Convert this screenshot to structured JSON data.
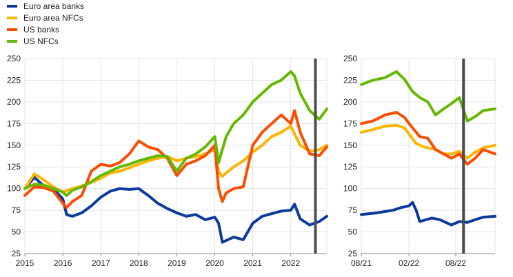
{
  "legend": [
    {
      "label": "Euro area banks",
      "color": "#0b3a9e"
    },
    {
      "label": "Euro area NFCs",
      "color": "#ffb400"
    },
    {
      "label": "US banks",
      "color": "#ff4b00"
    },
    {
      "label": "US NFCs",
      "color": "#65b800"
    }
  ],
  "chart_data": [
    {
      "type": "line",
      "title": "",
      "xlabel": "",
      "ylabel": "",
      "ylim": [
        25,
        250
      ],
      "yticks": [
        25,
        50,
        75,
        100,
        125,
        150,
        175,
        200,
        225,
        250
      ],
      "xlim": [
        2015.0,
        2022.95
      ],
      "xticks": [
        {
          "x": 2015,
          "label": "2015"
        },
        {
          "x": 2016,
          "label": "2016"
        },
        {
          "x": 2017,
          "label": "2017"
        },
        {
          "x": 2018,
          "label": "2018"
        },
        {
          "x": 2019,
          "label": "2019"
        },
        {
          "x": 2020,
          "label": "2020"
        },
        {
          "x": 2021,
          "label": "2021"
        },
        {
          "x": 2022,
          "label": "2022"
        }
      ],
      "grid": "horizontal",
      "vline": 2022.65,
      "series": [
        {
          "name": "Euro area banks",
          "color": "#0b3a9e",
          "x": [
            2015.0,
            2015.25,
            2015.5,
            2015.75,
            2016.0,
            2016.1,
            2016.25,
            2016.5,
            2016.75,
            2017.0,
            2017.25,
            2017.5,
            2017.75,
            2018.0,
            2018.25,
            2018.5,
            2018.75,
            2019.0,
            2019.25,
            2019.5,
            2019.75,
            2020.0,
            2020.1,
            2020.2,
            2020.3,
            2020.5,
            2020.75,
            2021.0,
            2021.25,
            2021.5,
            2021.75,
            2022.0,
            2022.1,
            2022.25,
            2022.5,
            2022.75,
            2022.95
          ],
          "y": [
            100,
            113,
            103,
            100,
            88,
            70,
            68,
            72,
            80,
            90,
            97,
            100,
            99,
            100,
            92,
            83,
            77,
            72,
            68,
            70,
            64,
            67,
            60,
            38,
            40,
            44,
            41,
            60,
            68,
            71,
            74,
            75,
            82,
            65,
            58,
            62,
            68
          ]
        },
        {
          "name": "Euro area NFCs",
          "color": "#ffb400",
          "x": [
            2015.0,
            2015.25,
            2015.5,
            2015.75,
            2016.0,
            2016.25,
            2016.5,
            2016.75,
            2017.0,
            2017.25,
            2017.5,
            2017.75,
            2018.0,
            2018.25,
            2018.5,
            2018.75,
            2019.0,
            2019.25,
            2019.5,
            2019.75,
            2020.0,
            2020.1,
            2020.2,
            2020.3,
            2020.5,
            2020.75,
            2021.0,
            2021.25,
            2021.5,
            2021.75,
            2022.0,
            2022.1,
            2022.25,
            2022.5,
            2022.75,
            2022.95
          ],
          "y": [
            100,
            117,
            110,
            102,
            96,
            100,
            103,
            107,
            112,
            118,
            120,
            124,
            128,
            132,
            135,
            137,
            132,
            135,
            137,
            140,
            145,
            120,
            114,
            118,
            125,
            132,
            142,
            150,
            160,
            165,
            172,
            163,
            150,
            143,
            145,
            150
          ]
        },
        {
          "name": "US banks",
          "color": "#ff4b00",
          "x": [
            2015.0,
            2015.25,
            2015.5,
            2015.75,
            2016.0,
            2016.1,
            2016.25,
            2016.5,
            2016.75,
            2017.0,
            2017.25,
            2017.5,
            2017.75,
            2018.0,
            2018.25,
            2018.5,
            2018.75,
            2019.0,
            2019.25,
            2019.5,
            2019.75,
            2020.0,
            2020.1,
            2020.2,
            2020.3,
            2020.5,
            2020.75,
            2021.0,
            2021.25,
            2021.5,
            2021.75,
            2022.0,
            2022.1,
            2022.25,
            2022.5,
            2022.75,
            2022.95
          ],
          "y": [
            92,
            102,
            101,
            97,
            83,
            78,
            85,
            92,
            120,
            128,
            126,
            130,
            140,
            155,
            148,
            145,
            135,
            115,
            128,
            132,
            138,
            150,
            100,
            85,
            95,
            100,
            102,
            150,
            165,
            175,
            185,
            175,
            190,
            165,
            140,
            138,
            148
          ]
        },
        {
          "name": "US NFCs",
          "color": "#65b800",
          "x": [
            2015.0,
            2015.25,
            2015.5,
            2015.75,
            2016.0,
            2016.1,
            2016.25,
            2016.5,
            2016.75,
            2017.0,
            2017.25,
            2017.5,
            2017.75,
            2018.0,
            2018.25,
            2018.5,
            2018.75,
            2019.0,
            2019.25,
            2019.5,
            2019.75,
            2020.0,
            2020.1,
            2020.2,
            2020.3,
            2020.5,
            2020.75,
            2021.0,
            2021.25,
            2021.5,
            2021.75,
            2022.0,
            2022.1,
            2022.25,
            2022.5,
            2022.75,
            2022.95
          ],
          "y": [
            100,
            105,
            104,
            100,
            96,
            92,
            98,
            102,
            108,
            115,
            120,
            125,
            128,
            132,
            135,
            138,
            137,
            120,
            135,
            140,
            148,
            160,
            130,
            145,
            160,
            175,
            185,
            200,
            210,
            220,
            225,
            235,
            230,
            210,
            190,
            180,
            192
          ]
        }
      ]
    },
    {
      "type": "line",
      "title": "",
      "xlabel": "",
      "ylabel": "",
      "ylim": [
        25,
        250
      ],
      "yticks": [
        25,
        50,
        75,
        100,
        125,
        150,
        175,
        200,
        225,
        250
      ],
      "xlim": [
        "2021-08-01",
        "2022-12-31"
      ],
      "xticks": [
        {
          "x": "2021-08-01",
          "label": "08/21"
        },
        {
          "x": "2022-02-01",
          "label": "02/22"
        },
        {
          "x": "2022-08-01",
          "label": "08/22"
        }
      ],
      "grid": "horizontal",
      "vline": "2022-08-31",
      "series": [
        {
          "name": "Euro area banks",
          "color": "#0b3a9e",
          "x": [
            "2021-08-01",
            "2021-10-01",
            "2021-12-01",
            "2022-01-01",
            "2022-02-01",
            "2022-02-15",
            "2022-03-01",
            "2022-03-15",
            "2022-05-01",
            "2022-06-01",
            "2022-07-15",
            "2022-08-15",
            "2022-09-15",
            "2022-10-15",
            "2022-11-15",
            "2022-12-31"
          ],
          "y": [
            70,
            72,
            75,
            78,
            80,
            84,
            75,
            62,
            66,
            64,
            58,
            62,
            61,
            64,
            67,
            68
          ]
        },
        {
          "name": "Euro area NFCs",
          "color": "#ffb400",
          "x": [
            "2021-08-01",
            "2021-09-15",
            "2021-11-01",
            "2021-12-15",
            "2022-01-15",
            "2022-02-01",
            "2022-03-01",
            "2022-04-01",
            "2022-05-15",
            "2022-06-15",
            "2022-07-15",
            "2022-08-15",
            "2022-09-15",
            "2022-10-15",
            "2022-11-15",
            "2022-12-31"
          ],
          "y": [
            165,
            168,
            172,
            173,
            170,
            163,
            152,
            148,
            145,
            140,
            140,
            143,
            135,
            142,
            147,
            150
          ]
        },
        {
          "name": "US banks",
          "color": "#ff4b00",
          "x": [
            "2021-08-01",
            "2021-09-15",
            "2021-11-01",
            "2021-12-15",
            "2022-01-15",
            "2022-02-15",
            "2022-03-15",
            "2022-04-15",
            "2022-05-15",
            "2022-06-15",
            "2022-07-15",
            "2022-08-15",
            "2022-09-15",
            "2022-10-15",
            "2022-11-15",
            "2022-12-31"
          ],
          "y": [
            175,
            178,
            185,
            188,
            182,
            170,
            160,
            158,
            145,
            140,
            135,
            140,
            128,
            135,
            145,
            140
          ]
        },
        {
          "name": "US NFCs",
          "color": "#65b800",
          "x": [
            "2021-08-01",
            "2021-09-15",
            "2021-11-01",
            "2021-12-15",
            "2022-01-15",
            "2022-02-15",
            "2022-03-15",
            "2022-04-15",
            "2022-05-15",
            "2022-06-15",
            "2022-07-15",
            "2022-08-15",
            "2022-09-15",
            "2022-10-15",
            "2022-11-15",
            "2022-12-31"
          ],
          "y": [
            220,
            225,
            228,
            235,
            226,
            212,
            205,
            200,
            185,
            192,
            198,
            205,
            178,
            183,
            190,
            192
          ]
        }
      ]
    }
  ]
}
